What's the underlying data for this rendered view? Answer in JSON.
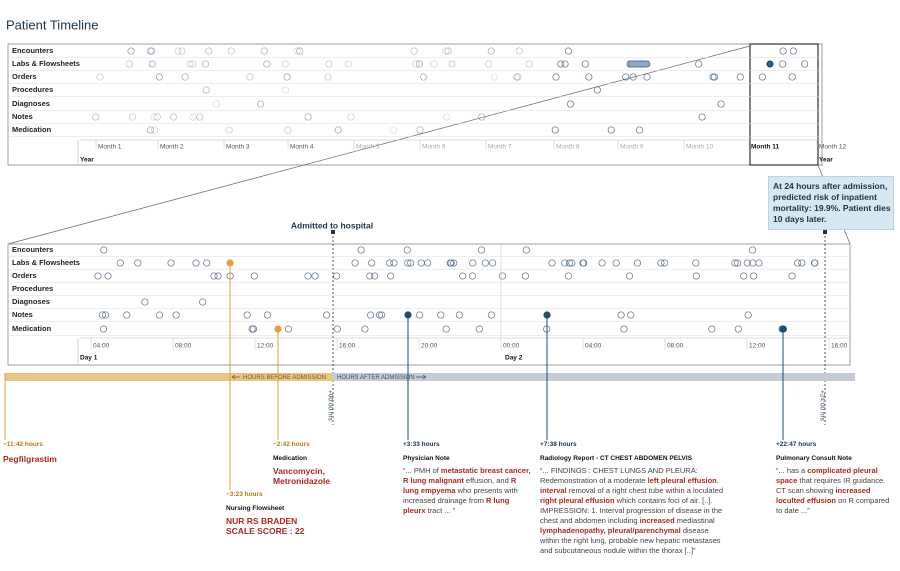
{
  "title": "Patient Timeline",
  "overview": {
    "rows": [
      "Encounters",
      "Labs & Flowsheets",
      "Orders",
      "Procedures",
      "Diagnoses",
      "Notes",
      "Medication"
    ],
    "months": [
      "Month 1",
      "Month 2",
      "Month 3",
      "Month 4",
      "Month 5",
      "Month 6",
      "Month 7",
      "Month 8",
      "Month 9",
      "Month 10",
      "Month 11",
      "Month 12"
    ],
    "year_labels": [
      "Year",
      "Year"
    ]
  },
  "detail": {
    "admitted_label": "Admitted to hospital",
    "rows": [
      "Encounters",
      "Labs & Flowsheets",
      "Orders",
      "Procedures",
      "Diagnoses",
      "Notes",
      "Medication"
    ],
    "times": [
      "04:00",
      "08:00",
      "12:00",
      "16:00",
      "20:00",
      "00:00",
      "04:00",
      "08:00",
      "12:00",
      "16:00"
    ],
    "days": [
      "Day 1",
      "Day 2"
    ]
  },
  "callout": "At 24 hours after admission, predicted risk of inpatient mortality: 19.9%. Patient dies 10 days later.",
  "axis": {
    "before": "HOURS BEFORE ADMISSION",
    "after": "HOURS AFTER ADMISSION",
    "start": "+00:00 hrs",
    "end": "+24:00 hrs"
  },
  "annotations": [
    {
      "time": "−11:42 hours",
      "text": [
        {
          "text": "Pegfilgrastim",
          "highlight": true
        }
      ]
    },
    {
      "time": "−3:23 hours",
      "kind": "Nursing Flowsheet",
      "text": [
        {
          "text": "NUR RS BRADEN SCALE SCORE : 22",
          "highlight": true
        }
      ]
    },
    {
      "time": "−2:42 hours",
      "kind": "Medication",
      "text": [
        {
          "text": "Vancomycin, Metronidazole",
          "highlight": true
        }
      ]
    },
    {
      "time": "+3:33 hours",
      "kind": "Physician Note",
      "text": [
        {
          "text": "“... PMH of ",
          "highlight": false
        },
        {
          "text": "metastatic breast cancer, R lung malignant",
          "highlight": true
        },
        {
          "text": " effusion, and ",
          "highlight": false
        },
        {
          "text": "R lung empyema",
          "highlight": true
        },
        {
          "text": " who presents with increased drainage from ",
          "highlight": false
        },
        {
          "text": "R lung pleurx",
          "highlight": true
        },
        {
          "text": " tract ... ”",
          "highlight": false
        }
      ]
    },
    {
      "time": "+7:38 hours",
      "kind": "Radiology Report - CT CHEST ABDOMEN PELVIS",
      "text": [
        {
          "text": "“... FINDINGS : CHEST LUNGS AND PLEURA: Redemonstration of a moderate ",
          "highlight": false
        },
        {
          "text": "left pleural effusion",
          "highlight": true
        },
        {
          "text": ". ",
          "highlight": false
        },
        {
          "text": "interval",
          "highlight": true
        },
        {
          "text": " removal of a right chest tube within a loculated ",
          "highlight": false
        },
        {
          "text": "right pleural effusion",
          "highlight": true
        },
        {
          "text": " which contains foci of air. [..]. IMPRESSION: 1. Interval progression of disease in the chest and abdomen including ",
          "highlight": false
        },
        {
          "text": "increased",
          "highlight": true
        },
        {
          "text": " mediastinal ",
          "highlight": false
        },
        {
          "text": "lymphadenopathy, pleural/parenchymal",
          "highlight": true
        },
        {
          "text": " disease within the right lung, probable new hepatic metastases and subcutaneous nodule within the thorax [..]”",
          "highlight": false
        }
      ]
    },
    {
      "time": "+22:47 hours",
      "kind": "Pulmonary Consult Note",
      "text": [
        {
          "text": "“... has a ",
          "highlight": false
        },
        {
          "text": "complicated pleural space",
          "highlight": true
        },
        {
          "text": " that requires IR guidance. CT scan showing ",
          "highlight": false
        },
        {
          "text": "increased loculted effusion",
          "highlight": true
        },
        {
          "text": " on R compared to date ...”",
          "highlight": false
        }
      ]
    }
  ]
}
